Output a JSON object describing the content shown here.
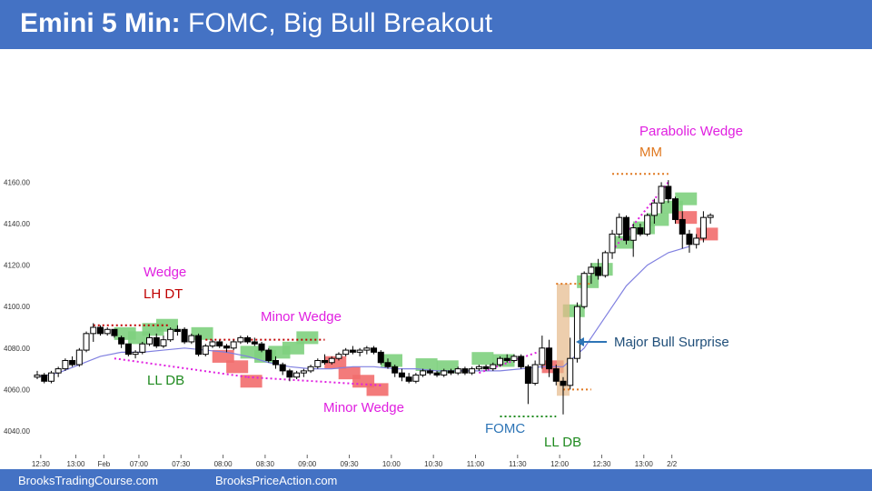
{
  "header": {
    "title_bold": "Emini 5 Min:",
    "title_rest": " FOMC, Big Bull Breakout"
  },
  "footer": {
    "link1": "BrooksTradingCourse.com",
    "link2": "BrooksPriceAction.com"
  },
  "colors": {
    "header_bg": "#4472c4",
    "bull_bar": "#ffffff",
    "bear_bar": "#000000",
    "green_highlight": "#7ed07e",
    "red_highlight": "#f26d6d",
    "ema": "#8080e0",
    "magenta": "#e020e0",
    "orange": "#e07820",
    "arrow": "#2e75b6"
  },
  "chart_data": {
    "type": "candlestick",
    "title": "",
    "xlabel": "",
    "ylabel": "",
    "ylim": [
      4030,
      4175
    ],
    "y_ticks": [
      "4040.00",
      "4060.00",
      "4080.00",
      "4100.00",
      "4120.00",
      "4140.00",
      "4160.00"
    ],
    "x_ticks": [
      "12:30",
      "13:00",
      "Feb",
      "07:00",
      "07:30",
      "08:00",
      "08:30",
      "09:00",
      "09:30",
      "10:00",
      "10:30",
      "11:00",
      "11:30",
      "12:00",
      "12:30",
      "13:00",
      "2/2"
    ],
    "x_tick_bars": [
      1,
      11,
      19,
      29,
      41,
      53,
      65,
      77,
      89,
      101,
      113,
      125,
      137,
      149,
      161,
      173,
      181
    ],
    "candles": [
      [
        4066,
        4069,
        4065,
        4067
      ],
      [
        4067,
        4068,
        4063,
        4064
      ],
      [
        4064,
        4069,
        4063,
        4068
      ],
      [
        4068,
        4071,
        4066,
        4070
      ],
      [
        4070,
        4075,
        4069,
        4074
      ],
      [
        4074,
        4076,
        4071,
        4072
      ],
      [
        4072,
        4080,
        4071,
        4079
      ],
      [
        4079,
        4088,
        4078,
        4087
      ],
      [
        4087,
        4092,
        4083,
        4090
      ],
      [
        4090,
        4091,
        4086,
        4087
      ],
      [
        4087,
        4090,
        4086,
        4089
      ],
      [
        4089,
        4089,
        4085,
        4086
      ],
      [
        4085,
        4086,
        4080,
        4082
      ],
      [
        4082,
        4082,
        4076,
        4077
      ],
      [
        4077,
        4079,
        4075,
        4078
      ],
      [
        4078,
        4083,
        4077,
        4082
      ],
      [
        4082,
        4087,
        4081,
        4085
      ],
      [
        4085,
        4087,
        4080,
        4081
      ],
      [
        4081,
        4086,
        4080,
        4084
      ],
      [
        4084,
        4090,
        4083,
        4089
      ],
      [
        4089,
        4091,
        4086,
        4088
      ],
      [
        4089,
        4090,
        4082,
        4083
      ],
      [
        4083,
        4087,
        4082,
        4086
      ],
      [
        4086,
        4087,
        4076,
        4077
      ],
      [
        4077,
        4082,
        4076,
        4081
      ],
      [
        4081,
        4084,
        4080,
        4083
      ],
      [
        4083,
        4084,
        4080,
        4081
      ],
      [
        4081,
        4082,
        4078,
        4080
      ],
      [
        4080,
        4084,
        4079,
        4083
      ],
      [
        4083,
        4086,
        4082,
        4085
      ],
      [
        4085,
        4086,
        4082,
        4083
      ],
      [
        4083,
        4085,
        4081,
        4082
      ],
      [
        4082,
        4083,
        4078,
        4079
      ],
      [
        4079,
        4080,
        4073,
        4074
      ],
      [
        4074,
        4076,
        4070,
        4072
      ],
      [
        4072,
        4073,
        4067,
        4069
      ],
      [
        4069,
        4070,
        4064,
        4066
      ],
      [
        4066,
        4069,
        4065,
        4068
      ],
      [
        4068,
        4070,
        4066,
        4069
      ],
      [
        4069,
        4072,
        4068,
        4071
      ],
      [
        4071,
        4075,
        4070,
        4074
      ],
      [
        4074,
        4077,
        4072,
        4073
      ],
      [
        4073,
        4076,
        4072,
        4075
      ],
      [
        4075,
        4078,
        4074,
        4077
      ],
      [
        4077,
        4080,
        4076,
        4079
      ],
      [
        4079,
        4081,
        4077,
        4078
      ],
      [
        4078,
        4080,
        4076,
        4079
      ],
      [
        4079,
        4081,
        4077,
        4080
      ],
      [
        4080,
        4081,
        4077,
        4078
      ],
      [
        4078,
        4079,
        4072,
        4073
      ],
      [
        4073,
        4075,
        4070,
        4071
      ],
      [
        4071,
        4072,
        4066,
        4068
      ],
      [
        4068,
        4070,
        4064,
        4066
      ],
      [
        4066,
        4068,
        4063,
        4064
      ],
      [
        4064,
        4068,
        4063,
        4067
      ],
      [
        4067,
        4070,
        4066,
        4069
      ],
      [
        4069,
        4070,
        4067,
        4068
      ],
      [
        4068,
        4069,
        4066,
        4067
      ],
      [
        4067,
        4070,
        4066,
        4069
      ],
      [
        4069,
        4070,
        4067,
        4068
      ],
      [
        4068,
        4071,
        4067,
        4070
      ],
      [
        4070,
        4071,
        4067,
        4068
      ],
      [
        4068,
        4071,
        4067,
        4070
      ],
      [
        4070,
        4072,
        4069,
        4071
      ],
      [
        4071,
        4072,
        4069,
        4070
      ],
      [
        4070,
        4073,
        4069,
        4072
      ],
      [
        4072,
        4076,
        4071,
        4075
      ],
      [
        4075,
        4077,
        4073,
        4074
      ],
      [
        4074,
        4077,
        4073,
        4076
      ],
      [
        4076,
        4077,
        4070,
        4071
      ],
      [
        4071,
        4072,
        4053,
        4063
      ],
      [
        4063,
        4074,
        4062,
        4072
      ],
      [
        4072,
        4086,
        4070,
        4080
      ],
      [
        4080,
        4084,
        4066,
        4070
      ],
      [
        4070,
        4072,
        4062,
        4064
      ],
      [
        4064,
        4066,
        4048,
        4062
      ],
      [
        4062,
        4085,
        4060,
        4075
      ],
      [
        4075,
        4102,
        4073,
        4100
      ],
      [
        4100,
        4117,
        4099,
        4116
      ],
      [
        4116,
        4121,
        4111,
        4119
      ],
      [
        4119,
        4123,
        4113,
        4115
      ],
      [
        4115,
        4127,
        4114,
        4126
      ],
      [
        4126,
        4137,
        4123,
        4135
      ],
      [
        4135,
        4145,
        4133,
        4143
      ],
      [
        4143,
        4144,
        4130,
        4132
      ],
      [
        4132,
        4140,
        4124,
        4138
      ],
      [
        4138,
        4140,
        4134,
        4135
      ],
      [
        4135,
        4145,
        4134,
        4144
      ],
      [
        4144,
        4152,
        4140,
        4150
      ],
      [
        4150,
        4160,
        4145,
        4158
      ],
      [
        4158,
        4161,
        4150,
        4152
      ],
      [
        4152,
        4153,
        4140,
        4142
      ],
      [
        4142,
        4146,
        4128,
        4135
      ],
      [
        4135,
        4137,
        4126,
        4130
      ],
      [
        4130,
        4135,
        4128,
        4133
      ],
      [
        4133,
        4146,
        4131,
        4143
      ],
      [
        4143,
        4145,
        4140,
        4144
      ]
    ],
    "candle_bars": [
      0,
      2,
      4,
      6,
      8,
      10,
      12,
      14,
      16,
      18,
      20,
      22,
      24,
      26,
      28,
      30,
      32,
      34,
      36,
      38,
      40,
      42,
      44,
      46,
      48,
      50,
      52,
      54,
      56,
      58,
      60,
      62,
      64,
      66,
      68,
      70,
      72,
      74,
      76,
      78,
      80,
      82,
      84,
      86,
      88,
      90,
      92,
      94,
      96,
      98,
      100,
      102,
      104,
      106,
      108,
      110,
      112,
      114,
      116,
      118,
      120,
      122,
      124,
      126,
      128,
      130,
      132,
      134,
      136,
      138,
      140,
      142,
      144,
      146,
      148,
      150,
      152,
      154,
      156,
      158,
      160,
      162,
      164,
      166,
      168,
      170,
      172,
      174,
      176,
      178,
      180,
      182,
      184,
      186,
      188,
      190,
      192
    ],
    "ema": [
      4066,
      4068,
      4072,
      4076,
      4078,
      4078,
      4079,
      4080,
      4079,
      4078,
      4076,
      4073,
      4071,
      4070,
      4070,
      4071,
      4071,
      4070,
      4070,
      4069,
      4069,
      4069,
      4069,
      4070,
      4071,
      4071,
      4080,
      4095,
      4110,
      4120,
      4126,
      4129
    ],
    "ema_every": 6,
    "annotations": {
      "wedge": "Wedge",
      "lh_dt": "LH DT",
      "ll_db_left": "LL DB",
      "minor_wedge_top": "Minor Wedge",
      "minor_wedge_bottom": "Minor Wedge",
      "fomc": "FOMC",
      "ll_db_right": "LL DB",
      "major_bull_surprise": "Major Bull Surprise",
      "parabolic_wedge": "Parabolic Wedge",
      "mm": "MM"
    }
  }
}
